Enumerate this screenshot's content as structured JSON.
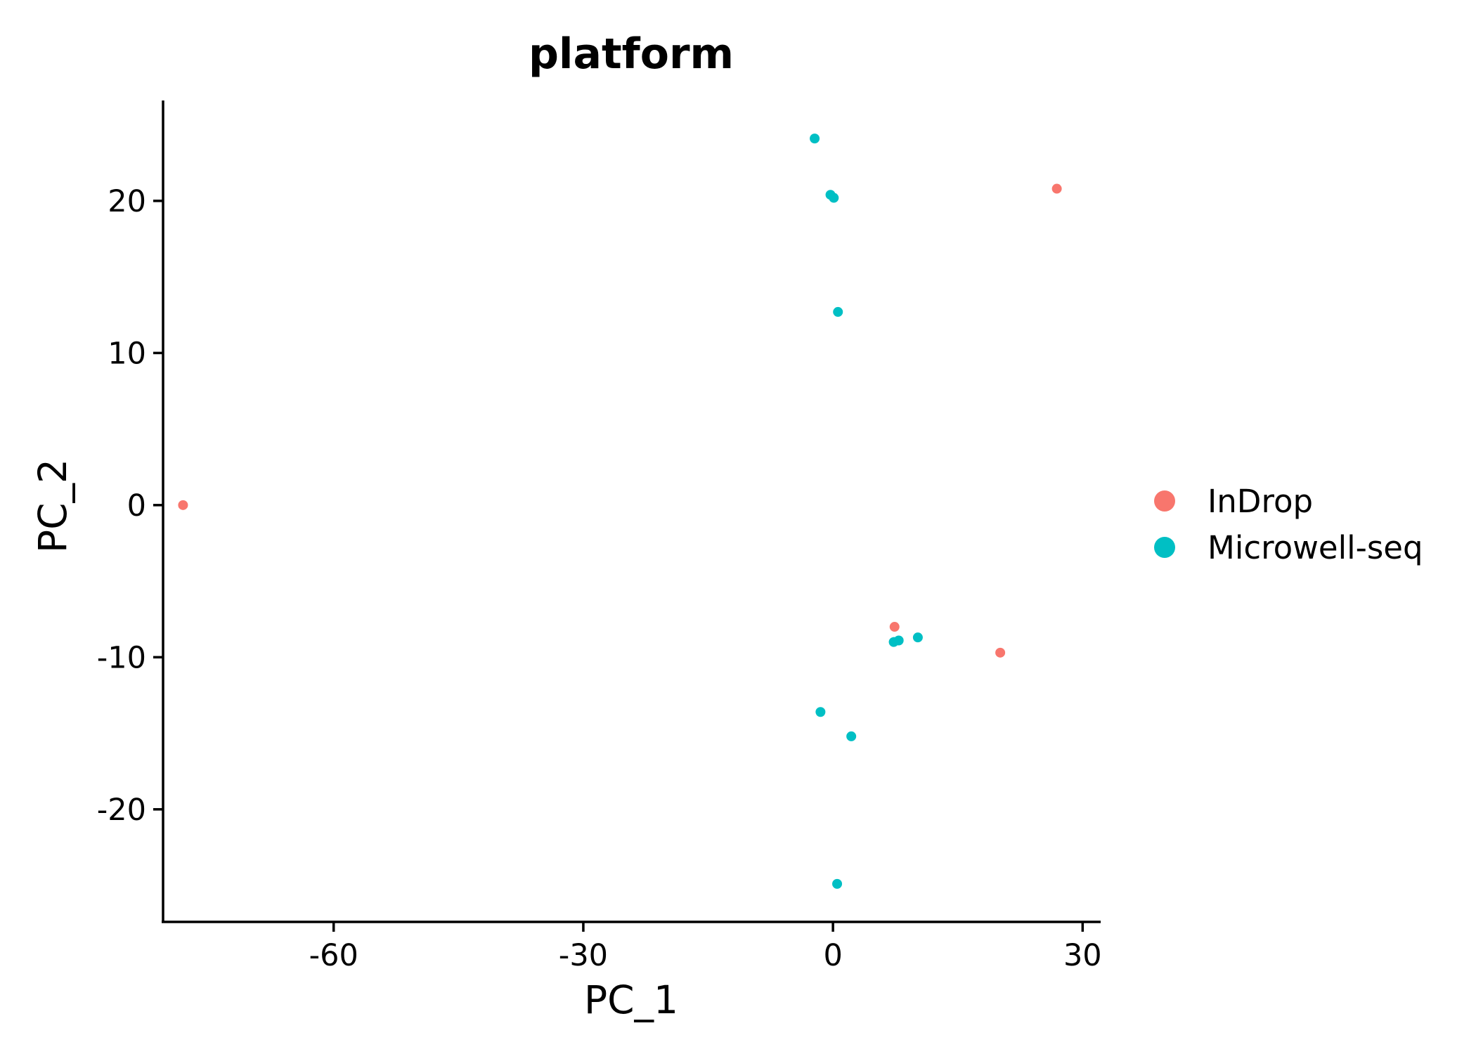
{
  "chart_data": {
    "type": "scatter",
    "title": "platform",
    "xlabel": "PC_1",
    "ylabel": "PC_2",
    "xlim": [
      -80.5,
      32
    ],
    "ylim": [
      -27.4,
      26.6
    ],
    "x_ticks": [
      {
        "value": -60,
        "label": "-60"
      },
      {
        "value": -30,
        "label": "-30"
      },
      {
        "value": 0,
        "label": "0"
      },
      {
        "value": 30,
        "label": "30"
      }
    ],
    "y_ticks": [
      {
        "value": 20,
        "label": "20"
      },
      {
        "value": 10,
        "label": "10"
      },
      {
        "value": 0,
        "label": "0"
      },
      {
        "value": -10,
        "label": "-10"
      },
      {
        "value": -20,
        "label": "-20"
      }
    ],
    "grid": false,
    "legend_position": "right",
    "series": [
      {
        "name": "InDrop",
        "color": "#F8766D",
        "points": [
          {
            "x": -78.1,
            "y": 0.0
          },
          {
            "x": 26.9,
            "y": 20.8
          },
          {
            "x": 7.4,
            "y": -8.0
          },
          {
            "x": 20.1,
            "y": -9.7
          }
        ]
      },
      {
        "name": "Microwell-seq",
        "color": "#00BFC4",
        "points": [
          {
            "x": -2.2,
            "y": 24.1
          },
          {
            "x": -0.3,
            "y": 20.4
          },
          {
            "x": 0.1,
            "y": 20.2
          },
          {
            "x": 0.6,
            "y": 12.7
          },
          {
            "x": 7.3,
            "y": -9.0
          },
          {
            "x": 7.9,
            "y": -8.9
          },
          {
            "x": 10.2,
            "y": -8.7
          },
          {
            "x": -1.5,
            "y": -13.6
          },
          {
            "x": 2.2,
            "y": -15.2
          },
          {
            "x": 0.5,
            "y": -24.9
          }
        ]
      }
    ]
  }
}
